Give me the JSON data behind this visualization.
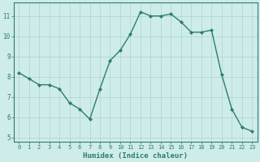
{
  "x": [
    0,
    1,
    2,
    3,
    4,
    5,
    6,
    7,
    8,
    9,
    10,
    11,
    12,
    13,
    14,
    15,
    16,
    17,
    18,
    19,
    20,
    21,
    22,
    23
  ],
  "y": [
    8.2,
    7.9,
    7.6,
    7.6,
    7.4,
    6.7,
    6.4,
    5.9,
    7.4,
    8.8,
    9.3,
    10.1,
    11.2,
    11.0,
    11.0,
    11.1,
    10.7,
    10.2,
    10.2,
    10.3,
    8.1,
    6.4,
    5.5,
    5.3
  ],
  "xlabel": "Humidex (Indice chaleur)",
  "xlim": [
    -0.5,
    23.5
  ],
  "ylim": [
    4.8,
    11.65
  ],
  "yticks": [
    5,
    6,
    7,
    8,
    9,
    10,
    11
  ],
  "xticks": [
    0,
    1,
    2,
    3,
    4,
    5,
    6,
    7,
    8,
    9,
    10,
    11,
    12,
    13,
    14,
    15,
    16,
    17,
    18,
    19,
    20,
    21,
    22,
    23
  ],
  "line_color": "#2d7d6f",
  "marker_color": "#2d7d6f",
  "bg_color": "#ceecea",
  "grid_color": "#aed4d0",
  "axes_bg": "#ceecea",
  "tick_color": "#2d7d6f",
  "label_color": "#2d7d6f",
  "spine_color": "#2d7d6f"
}
